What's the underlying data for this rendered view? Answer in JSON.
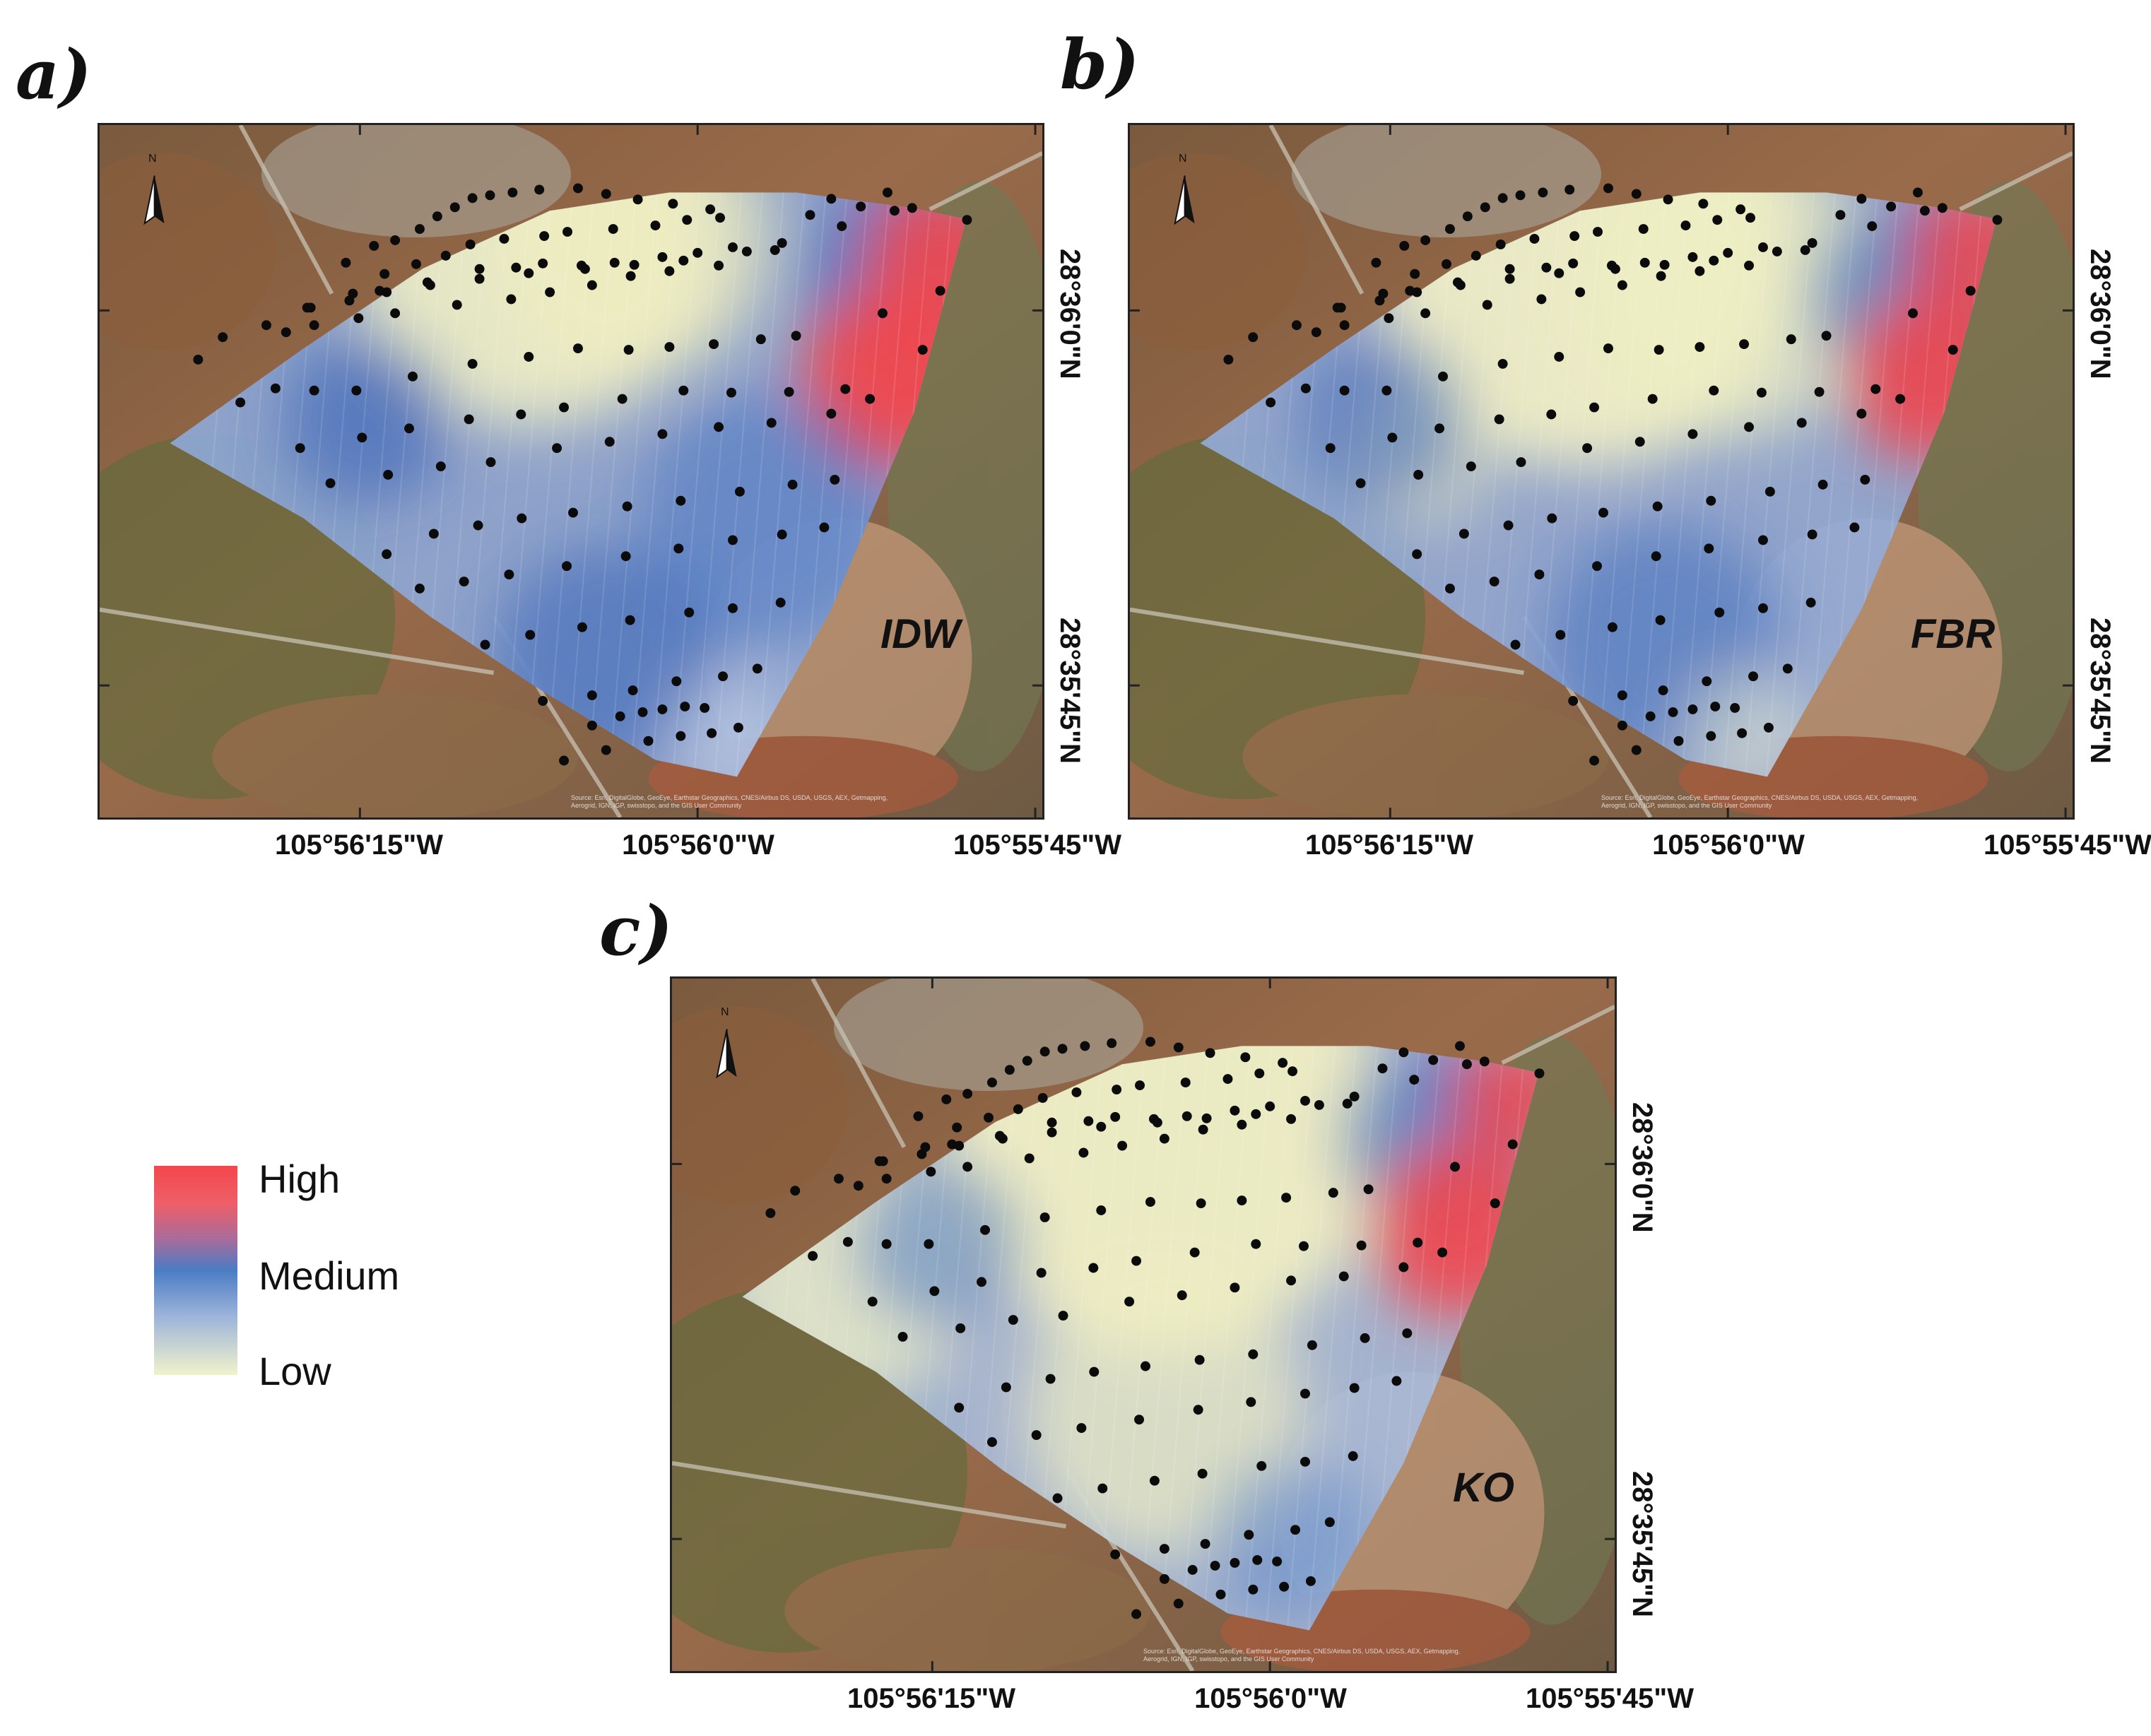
{
  "panels": [
    {
      "key": "a",
      "label": "a)",
      "method": "IDW"
    },
    {
      "key": "b",
      "label": "b)",
      "method": "FBR"
    },
    {
      "key": "c",
      "label": "c)",
      "method": "KO"
    }
  ],
  "axes": {
    "lon_ticks": [
      "105°56'15\"W",
      "105°56'0\"W",
      "105°55'45\"W"
    ],
    "lat_ticks": [
      "28°36'0\"N",
      "28°35'45\"N"
    ]
  },
  "north_arrow": {
    "label": "N",
    "icon": "north-arrow-icon"
  },
  "attribution": "Source: Esri, DigitalGlobe, GeoEye, Earthstar Geographics, CNES/Airbus DS, USDA, USGS, AEX, Getmapping, Aerogrid, IGN, IGP, swisstopo, and the GIS User Community",
  "legend": {
    "high": "High",
    "medium": "Medium",
    "low": "Low",
    "colors": {
      "high": "#f2474c",
      "medium": "#4a7cc4",
      "low": "#f1f2cc"
    }
  }
}
